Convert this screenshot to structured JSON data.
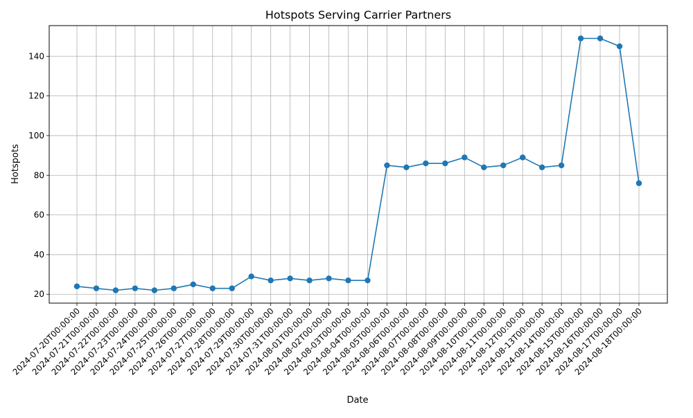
{
  "chart_data": {
    "type": "line",
    "title": "Hotspots Serving Carrier Partners",
    "xlabel": "Date",
    "ylabel": "Hotspots",
    "x": [
      "2024-07-20T00:00:00",
      "2024-07-21T00:00:00",
      "2024-07-22T00:00:00",
      "2024-07-23T00:00:00",
      "2024-07-24T00:00:00",
      "2024-07-25T00:00:00",
      "2024-07-26T00:00:00",
      "2024-07-27T00:00:00",
      "2024-07-28T00:00:00",
      "2024-07-29T00:00:00",
      "2024-07-30T00:00:00",
      "2024-07-31T00:00:00",
      "2024-08-01T00:00:00",
      "2024-08-02T00:00:00",
      "2024-08-03T00:00:00",
      "2024-08-04T00:00:00",
      "2024-08-05T00:00:00",
      "2024-08-06T00:00:00",
      "2024-08-07T00:00:00",
      "2024-08-08T00:00:00",
      "2024-08-09T00:00:00",
      "2024-08-10T00:00:00",
      "2024-08-11T00:00:00",
      "2024-08-12T00:00:00",
      "2024-08-13T00:00:00",
      "2024-08-14T00:00:00",
      "2024-08-15T00:00:00",
      "2024-08-16T00:00:00",
      "2024-08-17T00:00:00",
      "2024-08-18T00:00:00"
    ],
    "series": [
      {
        "values": [
          24,
          23,
          22,
          23,
          22,
          23,
          25,
          23,
          23,
          29,
          27,
          28,
          27,
          28,
          27,
          27,
          85,
          84,
          86,
          86,
          89,
          84,
          85,
          89,
          84,
          85,
          149,
          149,
          145,
          76
        ]
      }
    ],
    "yticks": [
      20,
      40,
      60,
      80,
      100,
      120,
      140
    ],
    "ylim": [
      15.55,
      155.45
    ],
    "grid": true,
    "legend": "none",
    "line_color": "#1f77b4",
    "marker": "circle"
  }
}
